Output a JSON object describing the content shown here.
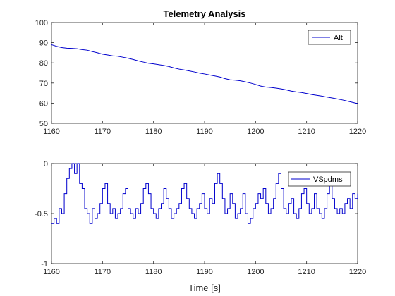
{
  "title": "Telemetry Analysis",
  "xlabel": "Time [s]",
  "line_color": "#0000cd",
  "chart_data": [
    {
      "type": "line",
      "name": "top-plot",
      "xlim": [
        1160,
        1220
      ],
      "ylim": [
        50,
        100
      ],
      "xticks": [
        1160,
        1170,
        1180,
        1190,
        1200,
        1210,
        1220
      ],
      "yticks": [
        50,
        60,
        70,
        80,
        90,
        100
      ],
      "series": [
        {
          "name": "Alt",
          "x": [
            1160,
            1161,
            1162,
            1163,
            1164,
            1165,
            1166,
            1167,
            1168,
            1169,
            1170,
            1171,
            1172,
            1173,
            1174,
            1175,
            1176,
            1177,
            1178,
            1179,
            1180,
            1181,
            1182,
            1183,
            1184,
            1185,
            1186,
            1187,
            1188,
            1189,
            1190,
            1191,
            1192,
            1193,
            1194,
            1195,
            1196,
            1197,
            1198,
            1199,
            1200,
            1201,
            1202,
            1203,
            1204,
            1205,
            1206,
            1207,
            1208,
            1209,
            1210,
            1211,
            1212,
            1213,
            1214,
            1215,
            1216,
            1217,
            1218,
            1219,
            1220
          ],
          "y": [
            89.0,
            88.2,
            87.6,
            87.3,
            87.2,
            87.0,
            86.6,
            86.3,
            85.6,
            85.0,
            84.3,
            83.9,
            83.5,
            83.3,
            82.8,
            82.3,
            81.7,
            81.0,
            80.4,
            79.8,
            79.5,
            79.1,
            78.7,
            78.2,
            77.5,
            76.9,
            76.5,
            76.0,
            75.5,
            74.9,
            74.5,
            74.0,
            73.5,
            73.0,
            72.2,
            71.6,
            71.4,
            71.1,
            70.6,
            70.0,
            69.3,
            68.5,
            68.0,
            67.8,
            67.5,
            67.1,
            66.6,
            66.0,
            65.6,
            65.3,
            64.8,
            64.3,
            63.9,
            63.5,
            63.0,
            62.6,
            62.1,
            61.6,
            61.0,
            60.4,
            59.8
          ]
        }
      ]
    },
    {
      "type": "line",
      "name": "bottom-plot",
      "xlim": [
        1160,
        1220
      ],
      "ylim": [
        -1,
        0
      ],
      "xticks": [
        1160,
        1170,
        1180,
        1190,
        1200,
        1210,
        1220
      ],
      "yticks": [
        -1,
        -0.5,
        0
      ],
      "ytick_labels": [
        "-1",
        "-0.5",
        "0"
      ],
      "series": [
        {
          "name": "VSpdms",
          "x": [
            1160,
            1160.5,
            1161,
            1161.5,
            1162,
            1162.5,
            1163,
            1163.5,
            1164,
            1164.5,
            1165,
            1165.5,
            1166,
            1166.5,
            1167,
            1167.5,
            1168,
            1168.5,
            1169,
            1169.5,
            1170,
            1170.5,
            1171,
            1171.5,
            1172,
            1172.5,
            1173,
            1173.5,
            1174,
            1174.5,
            1175,
            1175.5,
            1176,
            1176.5,
            1177,
            1177.5,
            1178,
            1178.5,
            1179,
            1179.5,
            1180,
            1180.5,
            1181,
            1181.5,
            1182,
            1182.5,
            1183,
            1183.5,
            1184,
            1184.5,
            1185,
            1185.5,
            1186,
            1186.5,
            1187,
            1187.5,
            1188,
            1188.5,
            1189,
            1189.5,
            1190,
            1190.5,
            1191,
            1191.5,
            1192,
            1192.5,
            1193,
            1193.5,
            1194,
            1194.5,
            1195,
            1195.5,
            1196,
            1196.5,
            1197,
            1197.5,
            1198,
            1198.5,
            1199,
            1199.5,
            1200,
            1200.5,
            1201,
            1201.5,
            1202,
            1202.5,
            1203,
            1203.5,
            1204,
            1204.5,
            1205,
            1205.5,
            1206,
            1206.5,
            1207,
            1207.5,
            1208,
            1208.5,
            1209,
            1209.5,
            1210,
            1210.5,
            1211,
            1211.5,
            1212,
            1212.5,
            1213,
            1213.5,
            1214,
            1214.5,
            1215,
            1215.5,
            1216,
            1216.5,
            1217,
            1217.5,
            1218,
            1218.5,
            1219,
            1219.5,
            1220
          ],
          "y": [
            -0.6,
            -0.55,
            -0.6,
            -0.45,
            -0.5,
            -0.3,
            -0.15,
            -0.05,
            0.0,
            -0.1,
            0.0,
            -0.2,
            -0.25,
            -0.45,
            -0.5,
            -0.6,
            -0.45,
            -0.55,
            -0.5,
            -0.4,
            -0.25,
            -0.2,
            -0.4,
            -0.5,
            -0.45,
            -0.55,
            -0.5,
            -0.45,
            -0.3,
            -0.25,
            -0.45,
            -0.5,
            -0.55,
            -0.45,
            -0.5,
            -0.4,
            -0.25,
            -0.2,
            -0.3,
            -0.45,
            -0.5,
            -0.55,
            -0.45,
            -0.4,
            -0.25,
            -0.35,
            -0.45,
            -0.55,
            -0.5,
            -0.45,
            -0.4,
            -0.25,
            -0.2,
            -0.35,
            -0.45,
            -0.5,
            -0.55,
            -0.45,
            -0.4,
            -0.3,
            -0.45,
            -0.5,
            -0.35,
            -0.4,
            -0.2,
            -0.1,
            -0.2,
            -0.35,
            -0.5,
            -0.45,
            -0.3,
            -0.4,
            -0.55,
            -0.5,
            -0.45,
            -0.3,
            -0.5,
            -0.6,
            -0.55,
            -0.45,
            -0.4,
            -0.3,
            -0.35,
            -0.25,
            -0.4,
            -0.5,
            -0.45,
            -0.35,
            -0.2,
            -0.1,
            -0.25,
            -0.45,
            -0.5,
            -0.4,
            -0.35,
            -0.5,
            -0.55,
            -0.45,
            -0.3,
            -0.25,
            -0.4,
            -0.5,
            -0.45,
            -0.3,
            -0.45,
            -0.5,
            -0.55,
            -0.45,
            -0.3,
            -0.2,
            -0.35,
            -0.45,
            -0.5,
            -0.45,
            -0.5,
            -0.4,
            -0.35,
            -0.45,
            -0.3,
            -0.35,
            -0.3
          ]
        }
      ]
    }
  ]
}
